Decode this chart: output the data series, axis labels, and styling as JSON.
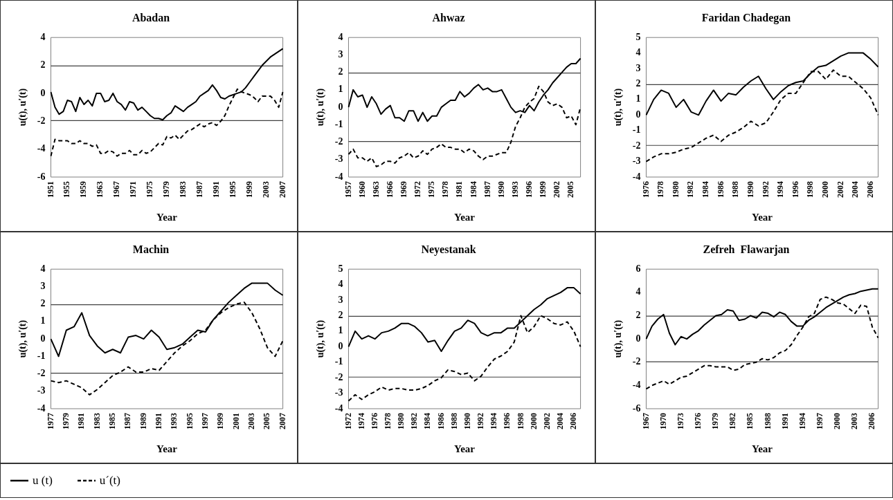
{
  "chart_data": [
    {
      "type": "line",
      "title": "Abadan",
      "xlabel": "Year",
      "ylabel": "u(t), u′(t)",
      "ylim": [
        -6,
        4
      ],
      "yticks": [
        -6,
        -4,
        -2,
        0,
        2,
        4
      ],
      "grid": false,
      "legend": false,
      "marker": "none",
      "categories": [
        "1951",
        null,
        null,
        null,
        "1955",
        null,
        null,
        null,
        "1959",
        null,
        null,
        null,
        "1963",
        null,
        null,
        null,
        "1967",
        null,
        null,
        null,
        "1971",
        null,
        null,
        null,
        "1975",
        null,
        null,
        null,
        "1979",
        null,
        null,
        null,
        "1983",
        null,
        null,
        null,
        "1987",
        null,
        null,
        null,
        "1991",
        null,
        null,
        null,
        "1995",
        null,
        null,
        null,
        "1999",
        null,
        null,
        null,
        "2003",
        null,
        null,
        null,
        "2007"
      ],
      "ref_lines": [
        {
          "axis": "y",
          "value": 1.96,
          "color": "#404040"
        },
        {
          "axis": "y",
          "value": -1.96,
          "color": "#404040"
        }
      ],
      "series": [
        {
          "color": "#000000",
          "line_style": "solid",
          "values": [
            0.1,
            -1.0,
            -1.5,
            -1.3,
            -0.5,
            -0.6,
            -1.3,
            -0.3,
            -0.8,
            -0.5,
            -0.9,
            0.0,
            0.0,
            -0.6,
            -0.5,
            0.0,
            -0.6,
            -0.8,
            -1.2,
            -0.6,
            -0.7,
            -1.2,
            -1.0,
            -1.3,
            -1.6,
            -1.8,
            -1.8,
            -1.9,
            -1.6,
            -1.4,
            -0.9,
            -1.1,
            -1.3,
            -1.0,
            -0.8,
            -0.6,
            -0.2,
            0.0,
            0.2,
            0.6,
            0.2,
            -0.3,
            -0.4,
            -0.2,
            -0.1,
            0.0,
            0.1,
            0.4,
            0.8,
            1.2,
            1.6,
            2.0,
            2.3,
            2.6,
            2.8,
            3.0,
            3.2
          ]
        },
        {
          "color": "#000000",
          "line_style": "dashed",
          "values": [
            -4.5,
            -3.3,
            -3.4,
            -3.4,
            -3.4,
            -3.6,
            -3.6,
            -3.4,
            -3.6,
            -3.6,
            -3.8,
            -3.7,
            -4.3,
            -4.3,
            -4.1,
            -4.2,
            -4.5,
            -4.3,
            -4.3,
            -4.1,
            -4.4,
            -4.4,
            -4.1,
            -4.3,
            -4.2,
            -3.9,
            -3.6,
            -3.7,
            -3.1,
            -3.2,
            -3.0,
            -3.3,
            -3.0,
            -2.7,
            -2.6,
            -2.4,
            -2.2,
            -2.4,
            -2.2,
            -2.1,
            -2.3,
            -2.0,
            -1.6,
            -0.9,
            -0.3,
            0.3,
            0.1,
            0.0,
            -0.1,
            -0.3,
            -0.6,
            -0.2,
            -0.2,
            -0.2,
            -0.5,
            -1.0,
            0.1
          ]
        }
      ]
    },
    {
      "type": "line",
      "title": "Ahwaz",
      "xlabel": "Year",
      "ylabel": "u(t), u′(t)",
      "ylim": [
        -4,
        4
      ],
      "yticks": [
        -4,
        -3,
        -2,
        -1,
        0,
        1,
        2,
        3,
        4
      ],
      "grid": false,
      "legend": false,
      "marker": "none",
      "categories": [
        "1957",
        null,
        null,
        "1960",
        null,
        null,
        "1963",
        null,
        null,
        "1966",
        null,
        null,
        "1969",
        null,
        null,
        "1972",
        null,
        null,
        "1975",
        null,
        null,
        "1978",
        null,
        null,
        "1981",
        null,
        null,
        "1984",
        null,
        null,
        "1987",
        null,
        null,
        "1990",
        null,
        null,
        "1993",
        null,
        null,
        "1996",
        null,
        null,
        "1999",
        null,
        null,
        "2002",
        null,
        null,
        "2005",
        null,
        null
      ],
      "ref_lines": [
        {
          "axis": "y",
          "value": 1.96,
          "color": "#404040"
        },
        {
          "axis": "y",
          "value": -1.96,
          "color": "#404040"
        }
      ],
      "series": [
        {
          "color": "#000000",
          "line_style": "solid",
          "values": [
            0.0,
            1.0,
            0.6,
            0.7,
            0.0,
            0.6,
            0.2,
            -0.4,
            -0.1,
            0.1,
            -0.6,
            -0.6,
            -0.8,
            -0.2,
            -0.2,
            -0.8,
            -0.3,
            -0.8,
            -0.5,
            -0.5,
            0.0,
            0.2,
            0.4,
            0.4,
            0.9,
            0.6,
            0.8,
            1.1,
            1.3,
            1.0,
            1.1,
            0.9,
            0.9,
            1.0,
            0.5,
            0.0,
            -0.3,
            -0.2,
            -0.3,
            0.1,
            -0.2,
            0.3,
            0.7,
            1.0,
            1.4,
            1.7,
            2.0,
            2.3,
            2.5,
            2.5,
            2.8
          ]
        },
        {
          "color": "#000000",
          "line_style": "dashed",
          "values": [
            -2.7,
            -2.4,
            -2.9,
            -2.9,
            -3.1,
            -2.9,
            -3.4,
            -3.3,
            -3.1,
            -3.1,
            -3.2,
            -2.9,
            -2.8,
            -2.6,
            -2.9,
            -2.8,
            -2.5,
            -2.7,
            -2.4,
            -2.3,
            -2.1,
            -2.3,
            -2.3,
            -2.4,
            -2.4,
            -2.6,
            -2.4,
            -2.5,
            -2.8,
            -3.0,
            -2.8,
            -2.8,
            -2.7,
            -2.6,
            -2.6,
            -2.0,
            -1.1,
            -0.6,
            0.0,
            0.3,
            0.5,
            1.2,
            0.9,
            0.3,
            0.1,
            0.2,
            0.0,
            -0.6,
            -0.5,
            -1.0,
            0.0
          ]
        }
      ]
    },
    {
      "type": "line",
      "title": "Faridan Chadegan",
      "xlabel": "Year",
      "ylabel": "u(t), u′(t)",
      "ylim": [
        -4,
        5
      ],
      "yticks": [
        -4,
        -3,
        -2,
        -1,
        0,
        1,
        2,
        3,
        4,
        5
      ],
      "grid": false,
      "legend": false,
      "marker": "none",
      "categories": [
        "1976",
        null,
        "1978",
        null,
        "1980",
        null,
        "1982",
        null,
        "1984",
        null,
        "1986",
        null,
        "1988",
        null,
        "1990",
        null,
        "1992",
        null,
        "1994",
        null,
        "1996",
        null,
        "1998",
        null,
        "2000",
        null,
        "2002",
        null,
        "2004",
        null,
        "2006",
        null
      ],
      "ref_lines": [
        {
          "axis": "y",
          "value": 1.96,
          "color": "#404040"
        },
        {
          "axis": "y",
          "value": -1.96,
          "color": "#404040"
        }
      ],
      "series": [
        {
          "color": "#000000",
          "line_style": "solid",
          "values": [
            0.0,
            1.0,
            1.6,
            1.4,
            0.5,
            1.0,
            0.2,
            0.0,
            0.9,
            1.6,
            0.9,
            1.4,
            1.3,
            1.8,
            2.2,
            2.5,
            1.7,
            1.0,
            1.5,
            1.9,
            2.1,
            2.2,
            2.7,
            3.1,
            3.2,
            3.5,
            3.8,
            4.0,
            4.0,
            4.0,
            3.6,
            3.1
          ]
        },
        {
          "color": "#000000",
          "line_style": "dashed",
          "values": [
            -3.0,
            -2.7,
            -2.5,
            -2.5,
            -2.4,
            -2.2,
            -2.1,
            -1.8,
            -1.5,
            -1.3,
            -1.7,
            -1.3,
            -1.1,
            -0.8,
            -0.4,
            -0.7,
            -0.5,
            0.2,
            1.0,
            1.4,
            1.4,
            2.1,
            2.8,
            2.8,
            2.3,
            2.9,
            2.5,
            2.5,
            2.1,
            1.7,
            1.1,
            0.0
          ]
        }
      ]
    },
    {
      "type": "line",
      "title": "Machin",
      "xlabel": "Year",
      "ylabel": "u(t), u′(t)",
      "ylim": [
        -4,
        4
      ],
      "yticks": [
        -4,
        -3,
        -2,
        -1,
        0,
        1,
        2,
        3,
        4
      ],
      "grid": false,
      "legend": false,
      "marker": "none",
      "categories": [
        "1977",
        null,
        "1979",
        null,
        "1981",
        null,
        "1983",
        null,
        "1985",
        null,
        "1987",
        null,
        "1989",
        null,
        "1991",
        null,
        "1993",
        null,
        "1995",
        null,
        "1997",
        null,
        "1999",
        null,
        "2001",
        null,
        "2003",
        null,
        "2005",
        null,
        "2007"
      ],
      "ref_lines": [
        {
          "axis": "y",
          "value": 1.96,
          "color": "#404040"
        },
        {
          "axis": "y",
          "value": -1.96,
          "color": "#404040"
        }
      ],
      "series": [
        {
          "color": "#000000",
          "line_style": "solid",
          "values": [
            0.0,
            -1.0,
            0.5,
            0.7,
            1.5,
            0.2,
            -0.4,
            -0.8,
            -0.6,
            -0.8,
            0.1,
            0.2,
            0.0,
            0.5,
            0.1,
            -0.6,
            -0.5,
            -0.3,
            0.1,
            0.5,
            0.4,
            1.1,
            1.6,
            2.1,
            2.5,
            2.9,
            3.2,
            3.2,
            3.2,
            2.8,
            2.5
          ]
        },
        {
          "color": "#000000",
          "line_style": "dashed",
          "values": [
            -2.4,
            -2.5,
            -2.4,
            -2.6,
            -2.8,
            -3.2,
            -2.9,
            -2.5,
            -2.1,
            -1.9,
            -1.6,
            -1.9,
            -1.9,
            -1.7,
            -1.8,
            -1.3,
            -0.8,
            -0.4,
            -0.1,
            0.3,
            0.5,
            1.1,
            1.5,
            1.8,
            2.0,
            2.1,
            1.5,
            0.6,
            -0.5,
            -1.0,
            -0.1
          ]
        }
      ]
    },
    {
      "type": "line",
      "title": "Neyestanak",
      "xlabel": "Year",
      "ylabel": "u(t), u′(t)",
      "ylim": [
        -4,
        5
      ],
      "yticks": [
        -4,
        -3,
        -2,
        -1,
        0,
        1,
        2,
        3,
        4,
        5
      ],
      "grid": false,
      "legend": false,
      "marker": "none",
      "categories": [
        "1972",
        null,
        "1974",
        null,
        "1976",
        null,
        "1978",
        null,
        "1980",
        null,
        "1982",
        null,
        "1984",
        null,
        "1986",
        null,
        "1988",
        null,
        "1990",
        null,
        "1992",
        null,
        "1994",
        null,
        "1996",
        null,
        "1998",
        null,
        "2000",
        null,
        "2002",
        null,
        "2004",
        null,
        "2006",
        null
      ],
      "ref_lines": [
        {
          "axis": "y",
          "value": 1.96,
          "color": "#404040"
        },
        {
          "axis": "y",
          "value": -1.96,
          "color": "#404040"
        }
      ],
      "series": [
        {
          "color": "#000000",
          "line_style": "solid",
          "values": [
            0.0,
            1.0,
            0.5,
            0.7,
            0.5,
            0.9,
            1.0,
            1.2,
            1.5,
            1.5,
            1.3,
            0.9,
            0.3,
            0.4,
            -0.3,
            0.4,
            1.0,
            1.2,
            1.7,
            1.5,
            0.9,
            0.7,
            0.9,
            0.9,
            1.2,
            1.2,
            1.6,
            2.0,
            2.4,
            2.7,
            3.1,
            3.3,
            3.5,
            3.8,
            3.8,
            3.4
          ]
        },
        {
          "color": "#000000",
          "line_style": "dashed",
          "values": [
            -3.5,
            -3.1,
            -3.4,
            -3.1,
            -2.9,
            -2.6,
            -2.8,
            -2.7,
            -2.7,
            -2.8,
            -2.8,
            -2.7,
            -2.5,
            -2.2,
            -2.0,
            -1.5,
            -1.6,
            -1.8,
            -1.7,
            -2.2,
            -1.9,
            -1.3,
            -0.8,
            -0.6,
            -0.3,
            0.3,
            2.0,
            0.9,
            1.3,
            2.0,
            1.8,
            1.5,
            1.4,
            1.6,
            1.0,
            0.0
          ]
        }
      ]
    },
    {
      "type": "line",
      "title": "Zefreh  Flawarjan",
      "xlabel": "Year",
      "ylabel": "u(t), u′(t)",
      "ylim": [
        -6,
        6
      ],
      "yticks": [
        -6,
        -4,
        -2,
        0,
        2,
        4,
        6
      ],
      "grid": false,
      "legend": "bottom",
      "marker": "none",
      "categories": [
        "1967",
        null,
        null,
        "1970",
        null,
        null,
        "1973",
        null,
        null,
        "1976",
        null,
        null,
        "1979",
        null,
        null,
        "1982",
        null,
        null,
        "1985",
        null,
        null,
        "1988",
        null,
        null,
        "1991",
        null,
        null,
        "1994",
        null,
        null,
        "1997",
        null,
        null,
        "2000",
        null,
        null,
        "2003",
        null,
        null,
        "2006",
        null
      ],
      "ref_lines": [
        {
          "axis": "y",
          "value": 1.96,
          "color": "#404040"
        },
        {
          "axis": "y",
          "value": -1.96,
          "color": "#404040"
        }
      ],
      "series": [
        {
          "name": "u (t)",
          "color": "#000000",
          "line_style": "solid",
          "values": [
            0.0,
            1.1,
            1.7,
            2.1,
            0.5,
            -0.5,
            0.2,
            0.0,
            0.4,
            0.7,
            1.2,
            1.6,
            2.0,
            2.1,
            2.5,
            2.4,
            1.6,
            1.7,
            2.0,
            1.8,
            2.3,
            2.2,
            1.9,
            2.3,
            2.1,
            1.5,
            1.1,
            1.1,
            1.6,
            1.9,
            2.3,
            2.7,
            3.0,
            3.3,
            3.6,
            3.8,
            3.9,
            4.1,
            4.2,
            4.3,
            4.3
          ]
        },
        {
          "name": "u´(t)",
          "color": "#000000",
          "line_style": "dashed",
          "values": [
            -4.3,
            -4.0,
            -3.8,
            -3.6,
            -3.9,
            -3.6,
            -3.3,
            -3.2,
            -2.9,
            -2.6,
            -2.3,
            -2.3,
            -2.4,
            -2.4,
            -2.4,
            -2.7,
            -2.6,
            -2.2,
            -2.1,
            -2.0,
            -1.7,
            -1.8,
            -1.6,
            -1.2,
            -1.0,
            -0.5,
            0.3,
            1.0,
            1.9,
            2.2,
            3.4,
            3.6,
            3.4,
            3.1,
            3.0,
            2.6,
            2.2,
            2.9,
            2.8,
            1.0,
            0.1
          ]
        }
      ]
    }
  ]
}
